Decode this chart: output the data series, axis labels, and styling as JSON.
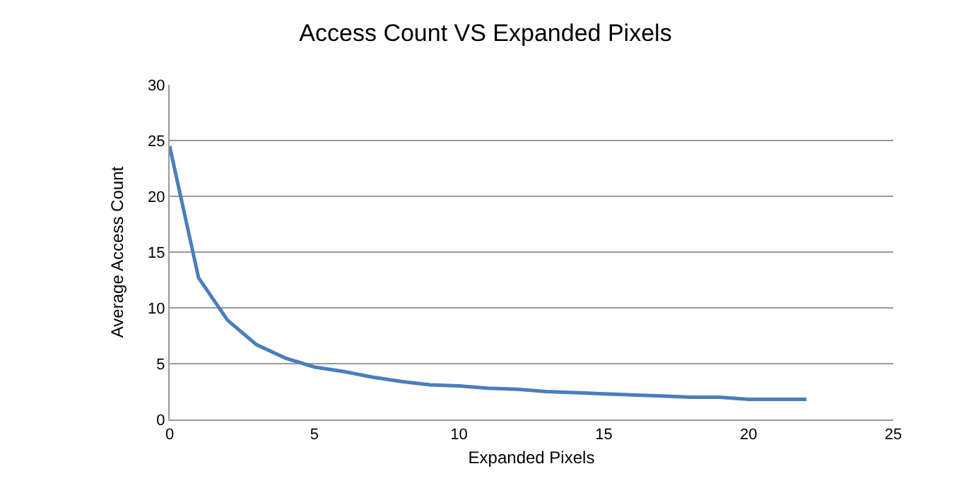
{
  "chart_data": {
    "type": "line",
    "title": "Access Count VS Expanded Pixels",
    "xlabel": "Expanded Pixels",
    "ylabel": "Average Access Count",
    "x": [
      0,
      1,
      2,
      3,
      4,
      5,
      6,
      7,
      8,
      9,
      10,
      11,
      12,
      13,
      14,
      15,
      16,
      17,
      18,
      19,
      20,
      21,
      22
    ],
    "series": [
      {
        "color": "#4a7ebb",
        "values": [
          24.5,
          12.7,
          8.9,
          6.7,
          5.5,
          4.7,
          4.3,
          3.8,
          3.4,
          3.1,
          3.0,
          2.8,
          2.7,
          2.5,
          2.4,
          2.3,
          2.2,
          2.1,
          2.0,
          2.0,
          1.8,
          1.8,
          1.8
        ]
      }
    ],
    "xlim": [
      0,
      25
    ],
    "xticks": [
      0,
      5,
      10,
      15,
      20,
      25
    ],
    "ylim": [
      0,
      30
    ],
    "yticks": [
      0,
      5,
      10,
      15,
      20,
      25,
      30
    ],
    "grid": "y",
    "marker": "none",
    "line_style": "solid"
  }
}
